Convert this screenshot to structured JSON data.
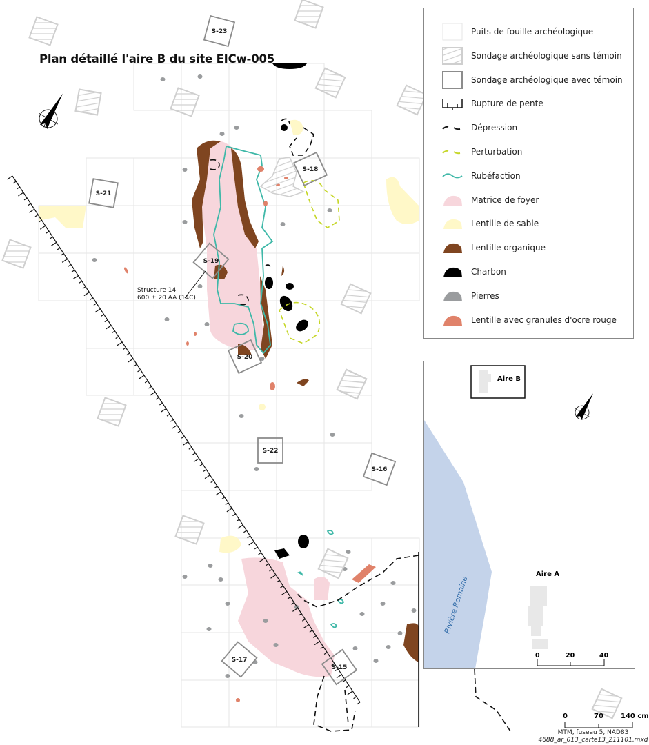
{
  "title": "Plan détaillé l'aire B du site EICw-005",
  "colors": {
    "matrice_foyer": "#f7d6dc",
    "lentille_sable": "#fff8c8",
    "lentille_organique": "#7f4520",
    "charbon": "#000000",
    "pierres": "#9a9c9e",
    "ocre_rouge": "#e0826a",
    "rubefaction": "#3fb8a8",
    "perturbation": "#c5d626",
    "depression": "#111111",
    "riviere": "#c4d3ea",
    "grid": "#e6e6e6",
    "sondage": "#8c8c8c"
  },
  "legend": {
    "items": [
      {
        "label": "Puits de fouille archéologique",
        "icon": "excavation-pit-square"
      },
      {
        "label": "Sondage archéologique sans témoin",
        "icon": "hatched-square"
      },
      {
        "label": "Sondage archéologique avec témoin",
        "icon": "outlined-square"
      },
      {
        "label": "Rupture de pente",
        "icon": "slope-break-line"
      },
      {
        "label": "Dépression",
        "icon": "black-dashed-line"
      },
      {
        "label": "Perturbation",
        "icon": "yellow-green-dashed-line"
      },
      {
        "label": "Rubéfaction",
        "icon": "teal-wavy-line"
      },
      {
        "label": "Matrice de foyer",
        "icon": "pink-patch"
      },
      {
        "label": "Lentille de sable",
        "icon": "pale-yellow-patch"
      },
      {
        "label": "Lentille organique",
        "icon": "brown-patch"
      },
      {
        "label": "Charbon",
        "icon": "black-patch"
      },
      {
        "label": "Pierres",
        "icon": "grey-patch"
      },
      {
        "label": "Lentille avec granules d'ocre rouge",
        "icon": "ochre-patch"
      }
    ]
  },
  "sondages": [
    "S-23",
    "S-21",
    "S-18",
    "S-19",
    "S-20",
    "S-22",
    "S-16",
    "S-17",
    "S-15"
  ],
  "structure": {
    "name": "Structure 14",
    "date": "600 ± 20 AA (14C)"
  },
  "inset": {
    "aire_b": "Aire B",
    "aire_a": "Aire A",
    "river": "Rivière Romaine",
    "scale_ticks": [
      "0",
      "20",
      "40"
    ]
  },
  "scale": {
    "ticks": [
      "0",
      "70",
      "140 cm"
    ]
  },
  "projection": "MTM, fuseau 5, NAD83",
  "filename": "4688_ar_013_carte13_211101.mxd"
}
